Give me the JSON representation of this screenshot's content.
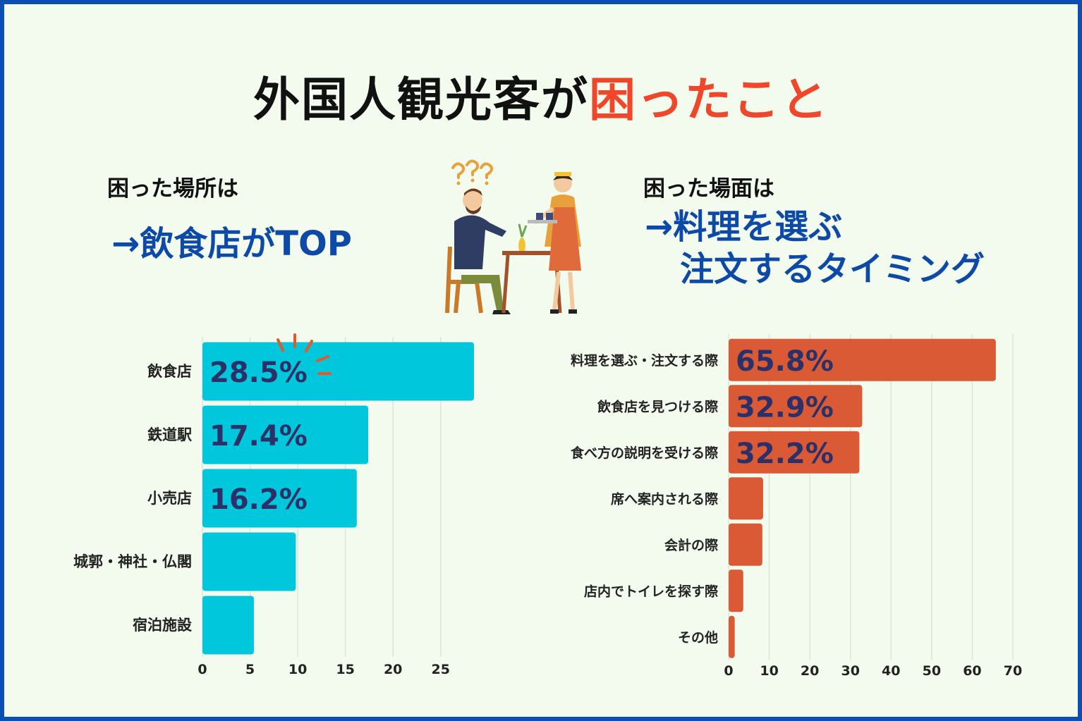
{
  "title": {
    "main": "外国人観光客が",
    "highlight": "困ったこと"
  },
  "left": {
    "subtitle": "困った場所は",
    "headline": "→飲食店がTOP"
  },
  "right": {
    "subtitle": "困った場面は",
    "headline_line1": "→料理を選ぶ",
    "headline_line2": "注文するタイミング"
  },
  "colors": {
    "left_bar": "#00c7dc",
    "right_bar": "#d95a35",
    "label_text": "#2b3168",
    "frame": "#0b4fb3",
    "accent": "#f0462a"
  },
  "chart_data": [
    {
      "type": "bar",
      "orientation": "horizontal",
      "categories": [
        "飲食店",
        "鉄道駅",
        "小売店",
        "城郭・神社・仏閣",
        "宿泊施設"
      ],
      "values": [
        28.5,
        17.4,
        16.2,
        9.8,
        5.4
      ],
      "data_labels": [
        "28.5%",
        "17.4%",
        "16.2%",
        "",
        ""
      ],
      "xlim": [
        0,
        28.5
      ],
      "xticks": [
        0,
        5,
        10,
        15,
        20,
        25
      ],
      "grid": true
    },
    {
      "type": "bar",
      "orientation": "horizontal",
      "categories": [
        "料理を選ぶ・注文する際",
        "飲食店を見つける際",
        "食べ方の説明を受ける際",
        "席へ案内される際",
        "会計の際",
        "店内でトイレを探す際",
        "その他"
      ],
      "values": [
        65.8,
        32.9,
        32.2,
        8.5,
        8.3,
        3.6,
        1.5
      ],
      "data_labels": [
        "65.8%",
        "32.9%",
        "32.2%",
        "",
        "",
        "",
        ""
      ],
      "xlim": [
        0,
        70
      ],
      "xticks": [
        0,
        10,
        20,
        30,
        40,
        50,
        60,
        70
      ],
      "grid": true
    }
  ]
}
